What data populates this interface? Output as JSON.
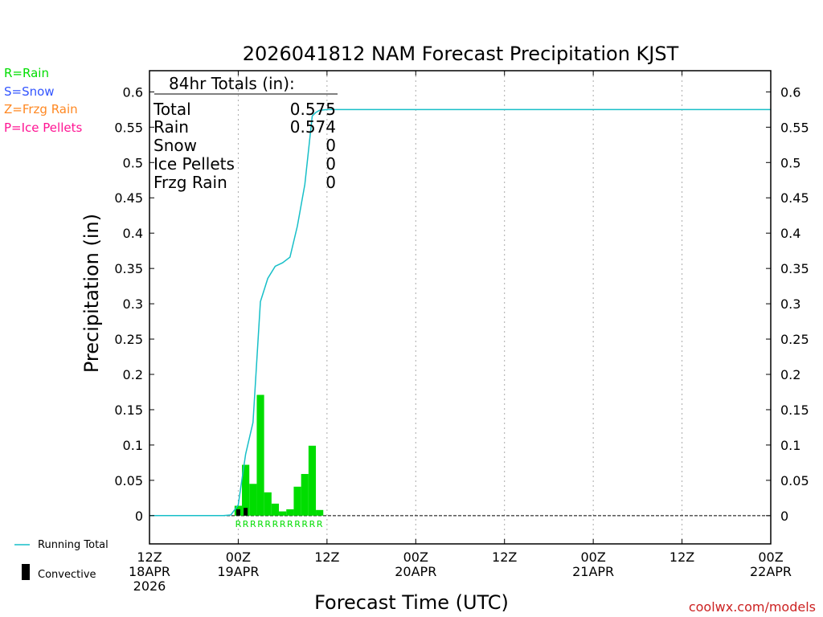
{
  "legend": [
    {
      "label": "R=Rain",
      "color": "#00dd00"
    },
    {
      "label": "S=Snow",
      "color": "#3355ff"
    },
    {
      "label": "Z=Frzg Rain",
      "color": "#ff8822"
    },
    {
      "label": "P=Ice Pellets",
      "color": "#ff1493"
    }
  ],
  "totals_box": {
    "header": "84hr Totals (in):",
    "rows": [
      {
        "label": "Total",
        "value": "0.575"
      },
      {
        "label": "Rain",
        "value": "0.574"
      },
      {
        "label": "Snow",
        "value": "0"
      },
      {
        "label": "Ice Pellets",
        "value": "0"
      },
      {
        "label": "Frzg Rain",
        "value": "0"
      }
    ]
  },
  "bottom_legend": {
    "running_total": "Running Total",
    "convective": "Convective"
  },
  "credit": "coolwx.com/models",
  "colors": {
    "running_total": "#17bfc8",
    "rain_bar": "#00dd00",
    "convective": "#000000",
    "grid": "#aaaaaa",
    "credit": "#cc2222"
  },
  "chart_data": {
    "type": "bar",
    "title": "2026041812 NAM Forecast Precipitation KJST",
    "xlabel": "Forecast Time (UTC)",
    "ylabel": "Precipitation (in)",
    "xlim": [
      0,
      84
    ],
    "ylim": [
      -0.04,
      0.63
    ],
    "yticks": [
      "-",
      "0",
      "0.05",
      "0.1",
      "0.15",
      "0.2",
      "0.25",
      "0.3",
      "0.35",
      "0.4",
      "0.45",
      "0.5",
      "0.55",
      "0.6"
    ],
    "ytick_values": [
      0,
      0,
      0.05,
      0.1,
      0.15,
      0.2,
      0.25,
      0.3,
      0.35,
      0.4,
      0.45,
      0.5,
      0.55,
      0.6
    ],
    "xticks": [
      {
        "hour": 0,
        "lines": [
          "12Z",
          "18APR",
          "2026"
        ]
      },
      {
        "hour": 12,
        "lines": [
          "00Z",
          "19APR"
        ]
      },
      {
        "hour": 24,
        "lines": [
          "12Z"
        ]
      },
      {
        "hour": 36,
        "lines": [
          "00Z",
          "20APR"
        ]
      },
      {
        "hour": 48,
        "lines": [
          "12Z"
        ]
      },
      {
        "hour": 60,
        "lines": [
          "00Z",
          "21APR"
        ]
      },
      {
        "hour": 72,
        "lines": [
          "12Z"
        ]
      },
      {
        "hour": 84,
        "lines": [
          "00Z",
          "22APR"
        ]
      }
    ],
    "grid_hours": [
      12,
      24,
      36,
      48,
      60,
      72
    ],
    "rain_bars": {
      "hours": [
        12,
        13,
        14,
        15,
        16,
        17,
        18,
        19,
        20,
        21,
        22,
        23
      ],
      "values": [
        0.014,
        0.072,
        0.045,
        0.171,
        0.033,
        0.017,
        0.006,
        0.009,
        0.041,
        0.059,
        0.099,
        0.008
      ]
    },
    "convective_bars": {
      "hours": [
        12,
        13
      ],
      "values": [
        0.009,
        0.011
      ]
    },
    "ptype_codes": {
      "hours": [
        12,
        13,
        14,
        15,
        16,
        17,
        18,
        19,
        20,
        21,
        22,
        23
      ],
      "codes": [
        "R",
        "R",
        "R",
        "R",
        "R",
        "R",
        "R",
        "R",
        "R",
        "R",
        "R",
        "R"
      ]
    },
    "running_total": {
      "x": [
        0,
        10,
        11,
        12,
        13,
        14,
        15,
        16,
        17,
        18,
        19,
        20,
        21,
        22,
        22.5,
        23,
        24,
        84
      ],
      "y": [
        0,
        0,
        0.001,
        0.015,
        0.087,
        0.132,
        0.303,
        0.336,
        0.353,
        0.358,
        0.366,
        0.41,
        0.469,
        0.566,
        0.571,
        0.574,
        0.575,
        0.575
      ]
    }
  }
}
